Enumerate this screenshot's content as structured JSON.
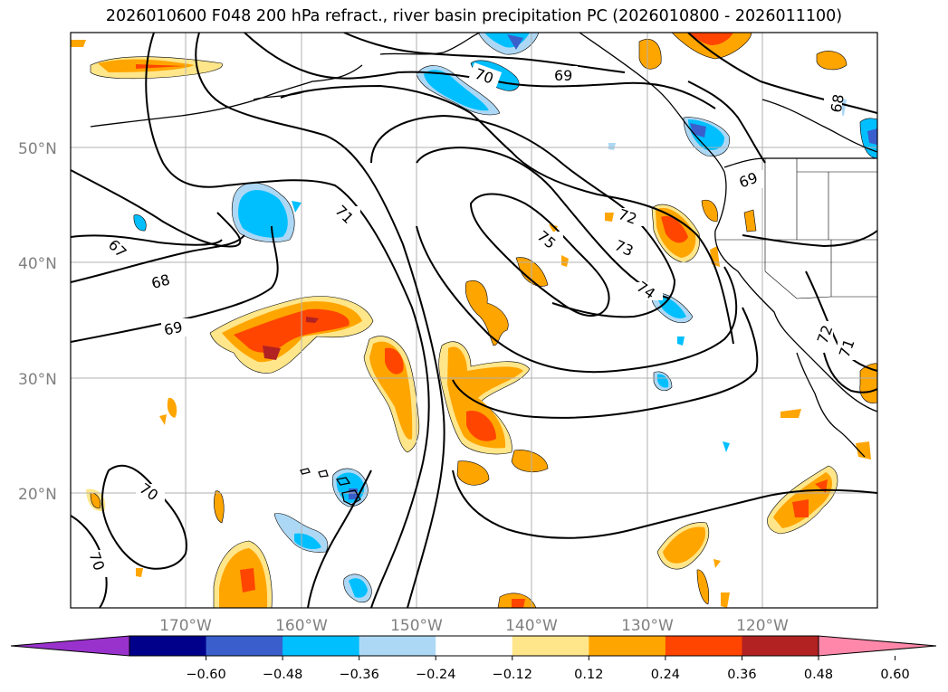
{
  "title": "2026010600 F048 200 hPa refract., river basin precipitation PC (2026010800 - 2026011100)",
  "latitude_labels": [
    "50°N",
    "40°N",
    "30°N",
    "20°N"
  ],
  "longitude_labels": [
    "170°W",
    "160°W",
    "150°W",
    "140°W",
    "130°W",
    "120°W"
  ],
  "contour_labels": [
    "70",
    "69",
    "68",
    "67",
    "68",
    "69",
    "71",
    "75",
    "72",
    "73",
    "74",
    "69",
    "70",
    "70",
    "72",
    "71"
  ],
  "colorbar": {
    "ticks": [
      "−0.60",
      "−0.48",
      "−0.36",
      "−0.24",
      "−0.12",
      "0.12",
      "0.24",
      "0.36",
      "0.48",
      "0.60"
    ],
    "colors": [
      "#9932cc",
      "#00008b",
      "#3a5fcd",
      "#00bfff",
      "#add8f5",
      "#ffffff",
      "#ffe68a",
      "#ffa500",
      "#ff4500",
      "#b22222",
      "#ff88aa"
    ]
  },
  "colors": {
    "pos_light": "#ffe68a",
    "pos_orange": "#ffa500",
    "pos_red": "#ff4500",
    "pos_dark": "#b22222",
    "neg_light": "#add8f5",
    "neg_cyan": "#00bfff",
    "neg_blue": "#3a5fcd"
  }
}
